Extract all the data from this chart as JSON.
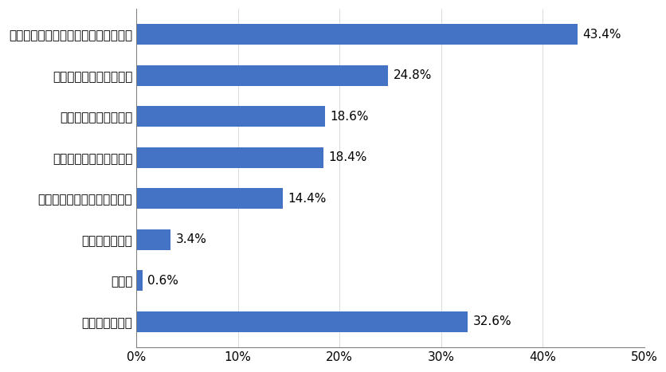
{
  "categories": [
    "洗濯機の見えない所の汚れが気になる",
    "洗濯物の匂いが気になる",
    "洗濯機の埃が気になる",
    "洗濯物にカビが付着する",
    "洗濯機本体の匂いが気になる",
    "乾燥機能の低下",
    "その他",
    "特に悩みがない"
  ],
  "values": [
    43.4,
    24.8,
    18.6,
    18.4,
    14.4,
    3.4,
    0.6,
    32.6
  ],
  "bar_color": "#4472c4",
  "xlim": [
    0,
    50
  ],
  "xticks": [
    0,
    10,
    20,
    30,
    40,
    50
  ],
  "xtick_labels": [
    "0%",
    "10%",
    "20%",
    "30%",
    "40%",
    "50%"
  ],
  "background_color": "#ffffff",
  "label_fontsize": 11,
  "tick_fontsize": 11,
  "bar_height": 0.5
}
